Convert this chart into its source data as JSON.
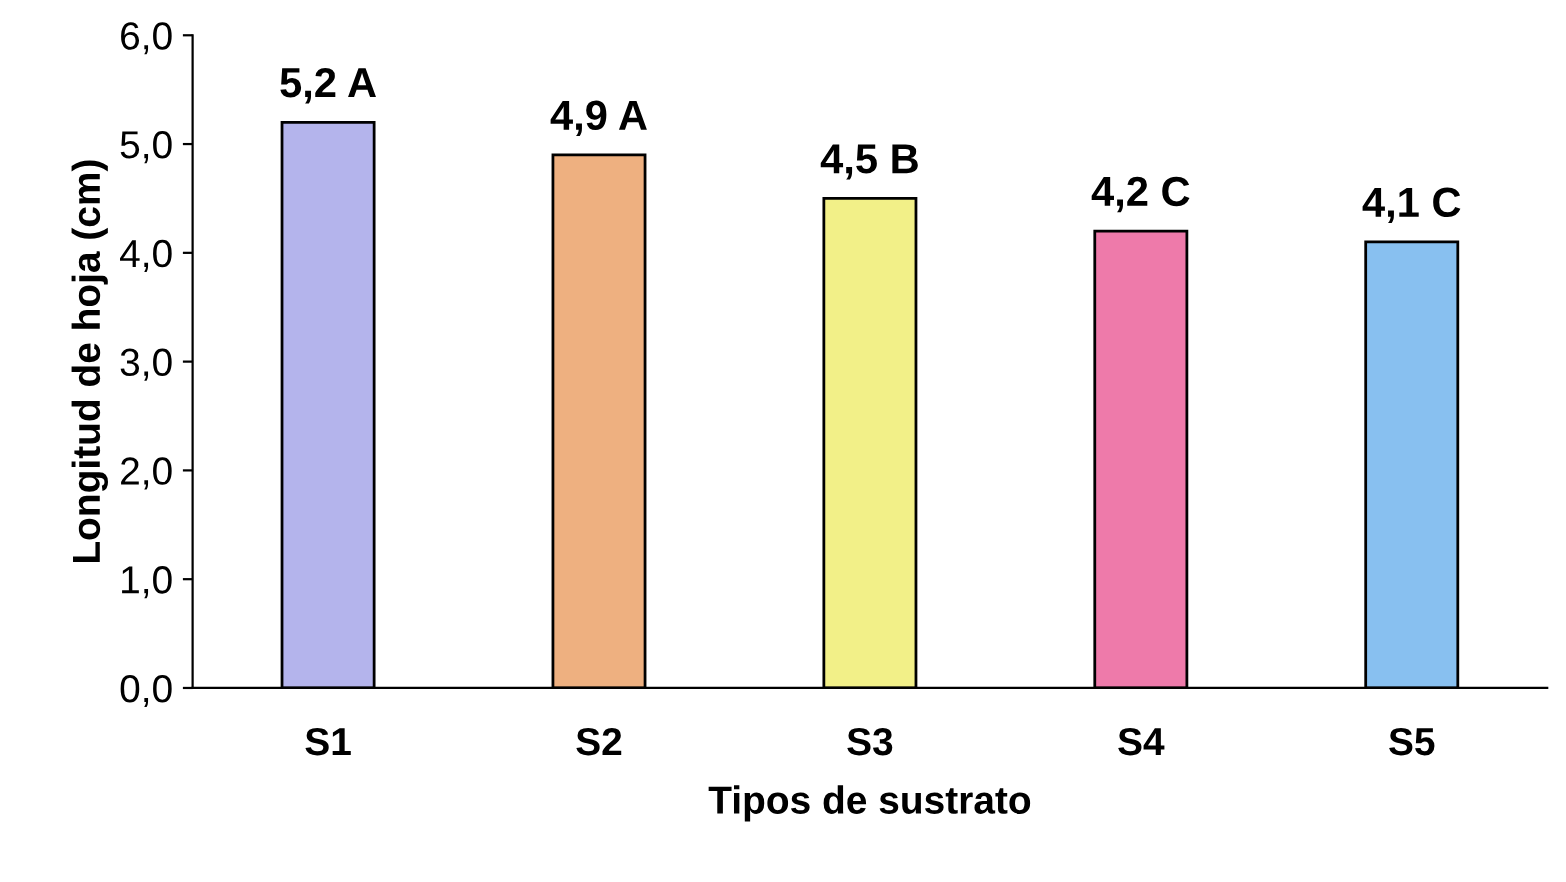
{
  "chart_data": {
    "type": "bar",
    "xlabel": "Tipos de sustrato",
    "ylabel": "Longitud de hoja (cm)",
    "categories": [
      "S1",
      "S2",
      "S3",
      "S4",
      "S5"
    ],
    "values": [
      5.2,
      4.9,
      4.5,
      4.2,
      4.1
    ],
    "colors": [
      "#b4b4ec",
      "#eeb080",
      "#f2f088",
      "#ee7aaa",
      "#88c0f0"
    ],
    "value_labels": [
      "5,2 A",
      "4,9 A",
      "4,5 B",
      "4,2 C",
      "4,1 C"
    ],
    "ylim": [
      0,
      6
    ],
    "yticks": [
      {
        "value": 0,
        "label": "0,0"
      },
      {
        "value": 1,
        "label": "1,0"
      },
      {
        "value": 2,
        "label": "2,0"
      },
      {
        "value": 3,
        "label": "3,0"
      },
      {
        "value": 4,
        "label": "4,0"
      },
      {
        "value": 5,
        "label": "5,0"
      },
      {
        "value": 6,
        "label": "6,0"
      }
    ],
    "grid": false
  }
}
